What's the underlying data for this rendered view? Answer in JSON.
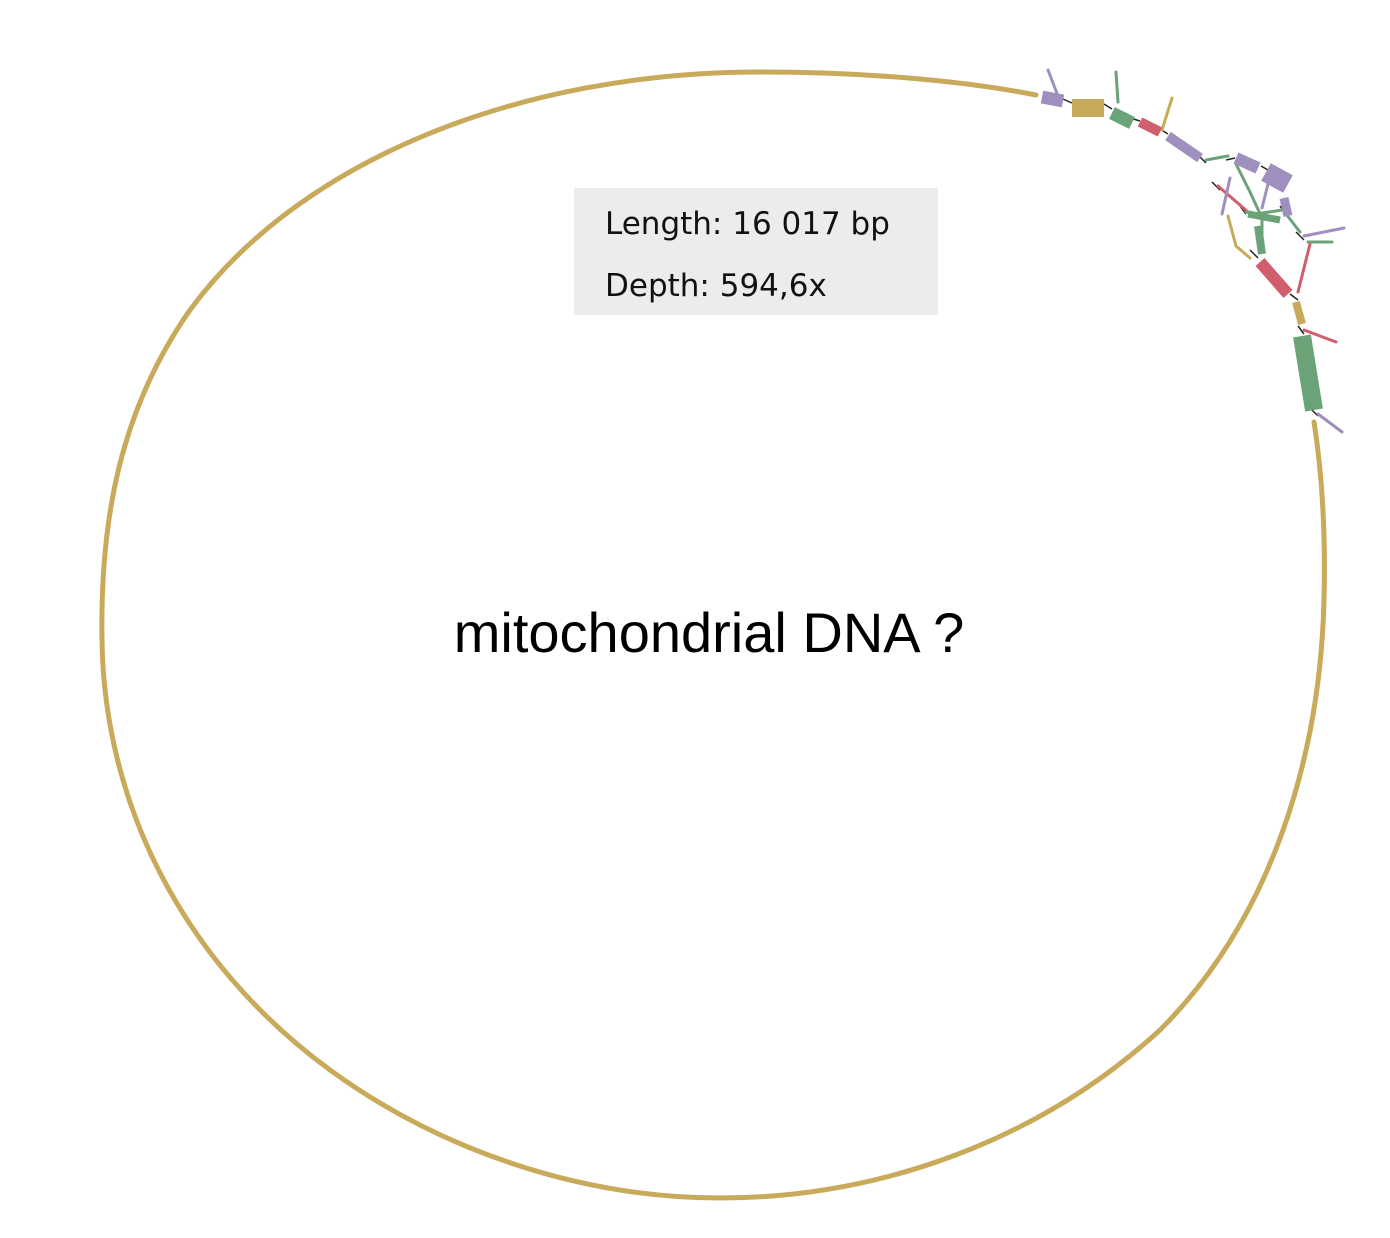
{
  "info": {
    "length_label": "Length:",
    "length_value": "16 017 bp",
    "depth_label": "Depth:",
    "depth_value": "594,6x"
  },
  "annotation": {
    "text": "mitochondrial DNA ?"
  },
  "colors": {
    "main_contig": "#c9aa5b",
    "segment_tan": "#c9aa5b",
    "segment_green": "#6aa377",
    "segment_red": "#d15e6c",
    "segment_purple": "#9f8fbf",
    "link": "#222222",
    "info_background": "#ececec"
  }
}
